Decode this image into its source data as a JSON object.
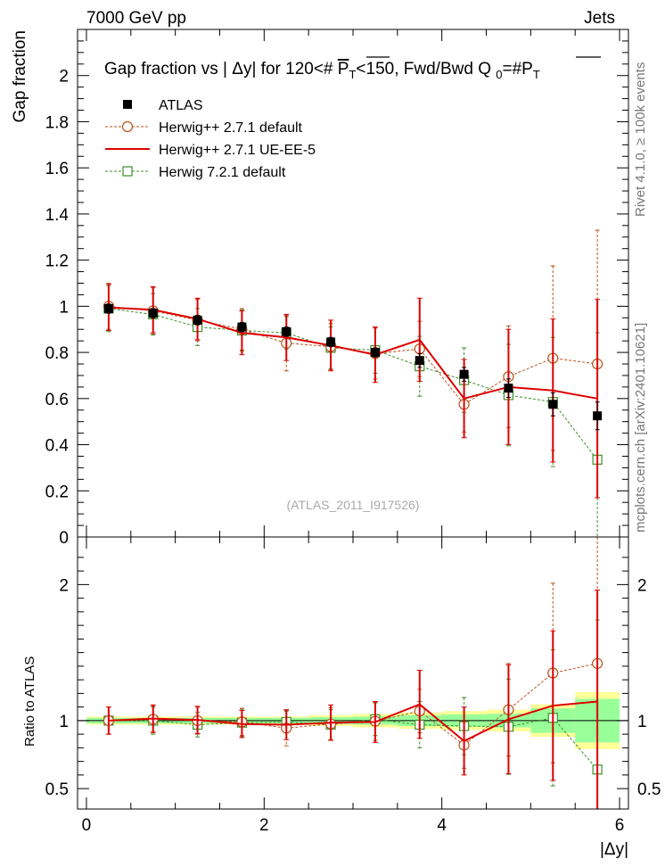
{
  "header": {
    "left": "7000 GeV pp",
    "right": "Jets",
    "side_top": "Rivet 4.1.0, ≥ 100k events",
    "side_bottom": "mcplots.cern.ch [arXiv:2401.10621]"
  },
  "chart_data": [
    {
      "type": "line",
      "title": "Gap fraction vs | Δy| for 120<# P_T<150, Fwd/Bwd Q _0=#P_T",
      "title_parts": {
        "prefix": "Gap fraction vs | Δy| for 120<# ",
        "pt_main": "P",
        "pt_sub": "T",
        "middle": "<150, Fwd/Bwd Q ",
        "q_sub": "0",
        "eq": "=#",
        "pt2_main": "P",
        "pt2_sub": "T"
      },
      "ylabel": "Gap fraction",
      "watermark": "(ATLAS_2011_I917526)",
      "xlim": [
        -0.1,
        6.1
      ],
      "ylim": [
        0,
        2.2
      ],
      "y_ticks": [
        "0",
        "0.2",
        "0.4",
        "0.6",
        "0.8",
        "1",
        "1.2",
        "1.4",
        "1.6",
        "1.8",
        "2"
      ],
      "x": [
        0.25,
        0.75,
        1.25,
        1.75,
        2.25,
        2.75,
        3.25,
        3.75,
        4.25,
        4.75,
        5.25,
        5.75
      ],
      "series": [
        {
          "name": "ATLAS",
          "style": "data",
          "color": "#000000",
          "values": [
            0.99,
            0.97,
            0.94,
            0.91,
            0.89,
            0.845,
            0.8,
            0.765,
            0.705,
            0.645,
            0.575,
            0.525
          ],
          "err": [
            0.02,
            0.02,
            0.02,
            0.02,
            0.02,
            0.02,
            0.02,
            0.03,
            0.03,
            0.04,
            0.05,
            0.06
          ]
        },
        {
          "name": "Herwig++ 2.7.1 default",
          "style": "circle",
          "color": "#b8531b",
          "values": [
            1.0,
            0.98,
            0.94,
            0.9,
            0.84,
            0.825,
            0.795,
            0.815,
            0.575,
            0.695,
            0.775,
            0.75
          ],
          "err": [
            0.1,
            0.1,
            0.09,
            0.09,
            0.12,
            0.1,
            0.11,
            0.12,
            0.12,
            0.22,
            0.4,
            0.58
          ]
        },
        {
          "name": "Herwig++ 2.7.1 UE-EE-5",
          "style": "line",
          "color": "#dd0000",
          "values": [
            0.995,
            0.985,
            0.945,
            0.885,
            0.865,
            0.83,
            0.79,
            0.855,
            0.6,
            0.65,
            0.635,
            0.6
          ],
          "err": [
            0.1,
            0.1,
            0.09,
            0.095,
            0.1,
            0.11,
            0.12,
            0.18,
            0.17,
            0.25,
            0.31,
            0.43
          ]
        },
        {
          "name": "Herwig 7.2.1 default",
          "style": "square",
          "color": "#3d8f2a",
          "values": [
            0.99,
            0.965,
            0.91,
            0.895,
            0.885,
            0.82,
            0.81,
            0.74,
            0.68,
            0.615,
            0.585,
            0.335
          ],
          "err": [
            0.1,
            0.09,
            0.08,
            0.09,
            0.07,
            0.09,
            0.1,
            0.13,
            0.14,
            0.22,
            0.28,
            0.55
          ]
        }
      ]
    },
    {
      "type": "line",
      "title": "",
      "ylabel": "Ratio to ATLAS",
      "xlabel": "|Δy|",
      "xlim": [
        -0.1,
        6.1
      ],
      "ylim": [
        0.35,
        2.35
      ],
      "y_ticks": [
        {
          "value": 0.5,
          "label": "0.5"
        },
        {
          "value": 1,
          "label": "1"
        },
        {
          "value": 2,
          "label": "2"
        }
      ],
      "x_ticks": [
        "0",
        "2",
        "4",
        "6"
      ],
      "x": [
        0.25,
        0.75,
        1.25,
        1.75,
        2.25,
        2.75,
        3.25,
        3.75,
        4.25,
        4.75,
        5.25,
        5.75
      ],
      "bands": {
        "yellow_half": [
          0.03,
          0.03,
          0.03,
          0.03,
          0.03,
          0.04,
          0.05,
          0.06,
          0.07,
          0.08,
          0.12,
          0.21
        ],
        "green_half": [
          0.02,
          0.02,
          0.02,
          0.02,
          0.02,
          0.025,
          0.03,
          0.04,
          0.045,
          0.05,
          0.09,
          0.16
        ]
      },
      "series": [
        {
          "name": "Herwig++ 2.7.1 default",
          "style": "circle",
          "color": "#b8531b",
          "values": [
            1.0,
            1.01,
            1.0,
            0.99,
            0.945,
            0.975,
            0.995,
            1.07,
            0.82,
            1.08,
            1.35,
            1.42
          ],
          "err": [
            0.1,
            0.1,
            0.1,
            0.1,
            0.13,
            0.12,
            0.14,
            0.16,
            0.17,
            0.34,
            0.66,
            1.1
          ]
        },
        {
          "name": "Herwig++ 2.7.1 UE-EE-5",
          "style": "line",
          "color": "#dd0000",
          "values": [
            1.0,
            1.015,
            1.005,
            0.975,
            0.97,
            0.985,
            0.99,
            1.12,
            0.85,
            1.01,
            1.11,
            1.14
          ],
          "err": [
            0.1,
            0.1,
            0.1,
            0.1,
            0.11,
            0.13,
            0.15,
            0.25,
            0.25,
            0.4,
            0.55,
            0.82
          ]
        },
        {
          "name": "Herwig 7.2.1 default",
          "style": "square",
          "color": "#3d8f2a",
          "values": [
            1.0,
            1.0,
            0.97,
            0.985,
            0.99,
            0.97,
            1.01,
            0.97,
            0.96,
            0.955,
            1.02,
            0.64
          ],
          "err": [
            0.1,
            0.1,
            0.09,
            0.1,
            0.08,
            0.11,
            0.12,
            0.17,
            0.21,
            0.35,
            0.5,
            1.1
          ]
        }
      ]
    }
  ]
}
